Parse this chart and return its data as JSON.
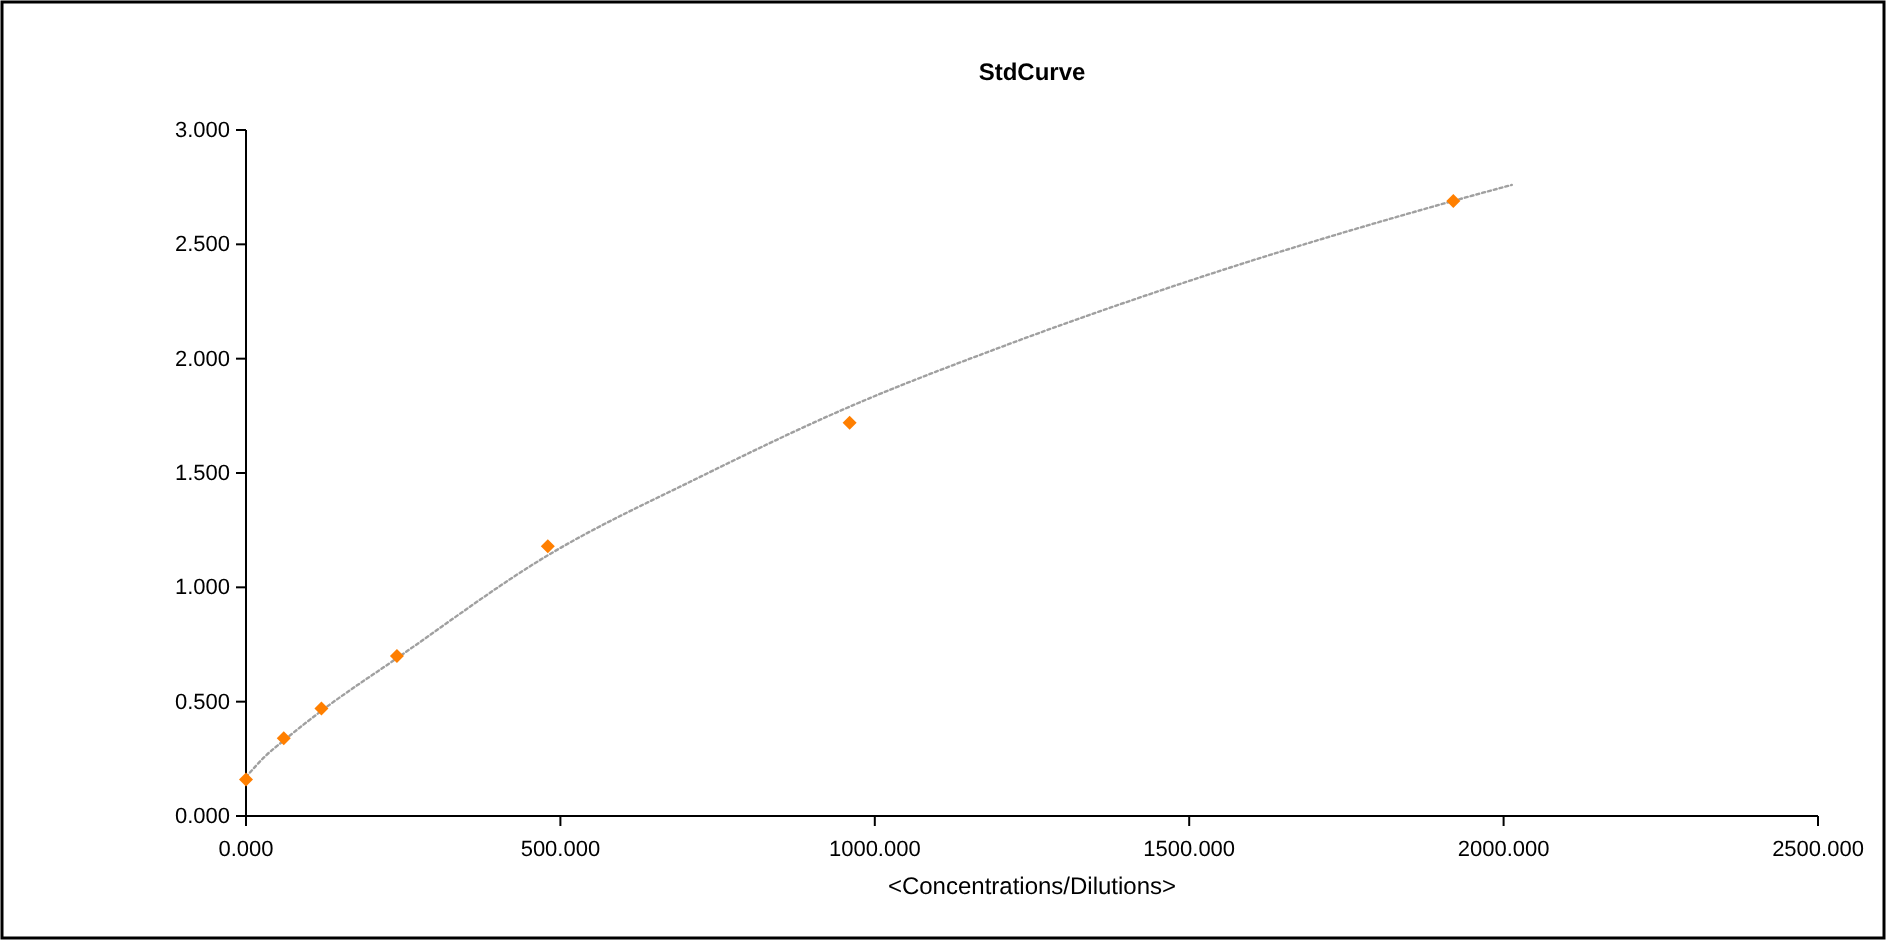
{
  "chart_data": {
    "type": "scatter",
    "title": "StdCurve",
    "xlabel": "<Concentrations/Dilutions>",
    "xlim": [
      0,
      2500
    ],
    "xticks": [
      {
        "value": 0,
        "label": "0.000"
      },
      {
        "value": 500,
        "label": "500.000"
      },
      {
        "value": 1000,
        "label": "1000.000"
      },
      {
        "value": 1500,
        "label": "1500.000"
      },
      {
        "value": 2000,
        "label": "2000.000"
      },
      {
        "value": 2500,
        "label": "2500.000"
      }
    ],
    "ylim": [
      0,
      3
    ],
    "yticks": [
      {
        "value": 0,
        "label": "0.000"
      },
      {
        "value": 0.5,
        "label": "0.500"
      },
      {
        "value": 1,
        "label": "1.000"
      },
      {
        "value": 1.5,
        "label": "1.500"
      },
      {
        "value": 2,
        "label": "2.000"
      },
      {
        "value": 2.5,
        "label": "2.500"
      },
      {
        "value": 3,
        "label": "3.000"
      }
    ],
    "grid": false,
    "series": [
      {
        "type": "scatter",
        "color": "#ff7f00",
        "marker": "diamond",
        "x": [
          0,
          60,
          120,
          240,
          480,
          960,
          1920
        ],
        "values": [
          0.16,
          0.34,
          0.47,
          0.7,
          1.18,
          1.72,
          2.69
        ]
      },
      {
        "type": "line",
        "color": "#a0a0a0",
        "line_style": "dotted",
        "x": [
          0,
          30,
          60,
          120,
          240,
          480,
          720,
          960,
          1200,
          1500,
          1920,
          2013
        ],
        "values": [
          0.17,
          0.26,
          0.33,
          0.46,
          0.69,
          1.14,
          1.48,
          1.79,
          2.05,
          2.34,
          2.69,
          2.76
        ]
      }
    ]
  }
}
